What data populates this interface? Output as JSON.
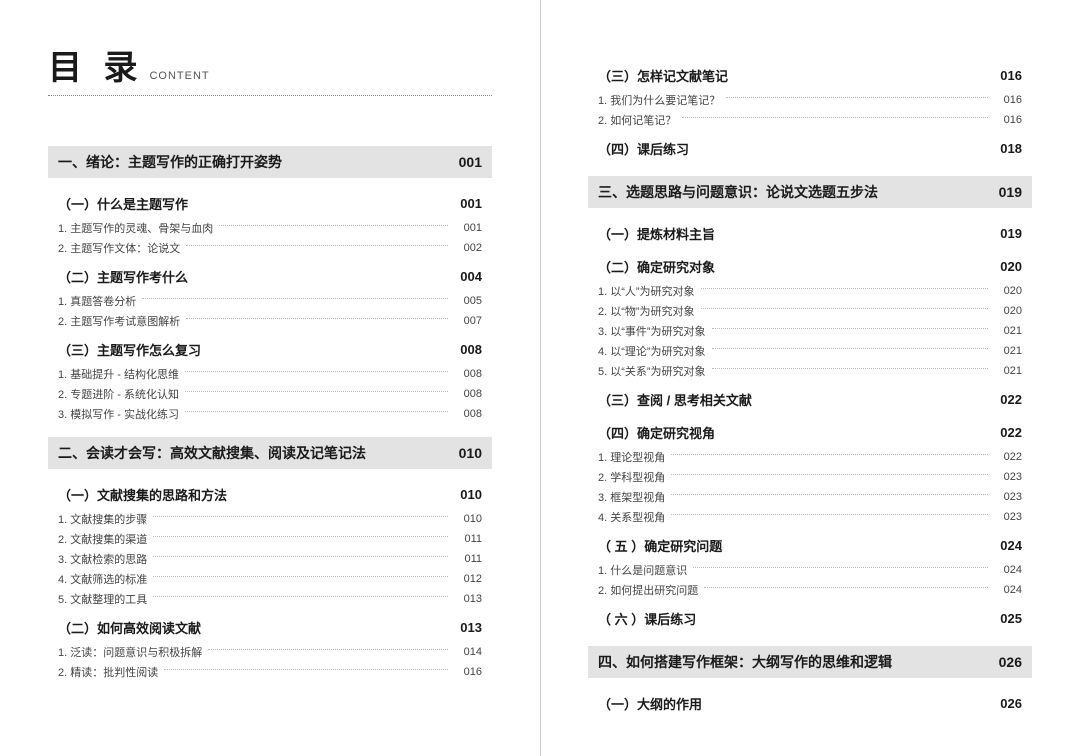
{
  "header": {
    "title_main": "目 录",
    "title_sub": "CONTENT"
  },
  "colors": {
    "page_bg": "#ffffff",
    "chapter_bg": "#e3e3e3",
    "text_primary": "#1a1a1a",
    "text_secondary": "#444",
    "dot_color": "#bbb",
    "divider_color": "#d0d0d0"
  },
  "left": {
    "ch1": {
      "title": "一、绪论：主题写作的正确打开姿势",
      "page": "001"
    },
    "ch1_s1": {
      "title": "（一）什么是主题写作",
      "page": "001"
    },
    "ch1_s1_i1": {
      "title": "1. 主题写作的灵魂、骨架与血肉",
      "page": "001"
    },
    "ch1_s1_i2": {
      "title": "2. 主题写作文体：论说文",
      "page": "002"
    },
    "ch1_s2": {
      "title": "（二）主题写作考什么",
      "page": "004"
    },
    "ch1_s2_i1": {
      "title": "1. 真题答卷分析",
      "page": "005"
    },
    "ch1_s2_i2": {
      "title": "2. 主题写作考试意图解析",
      "page": "007"
    },
    "ch1_s3": {
      "title": "（三）主题写作怎么复习",
      "page": "008"
    },
    "ch1_s3_i1": {
      "title": "1. 基础提升 - 结构化思维",
      "page": "008"
    },
    "ch1_s3_i2": {
      "title": "2. 专题进阶 - 系统化认知",
      "page": "008"
    },
    "ch1_s3_i3": {
      "title": "3. 模拟写作 - 实战化练习",
      "page": "008"
    },
    "ch2": {
      "title": "二、会读才会写：高效文献搜集、阅读及记笔记法",
      "page": "010"
    },
    "ch2_s1": {
      "title": "（一）文献搜集的思路和方法",
      "page": "010"
    },
    "ch2_s1_i1": {
      "title": "1. 文献搜集的步骤",
      "page": "010"
    },
    "ch2_s1_i2": {
      "title": "2. 文献搜集的渠道",
      "page": "011"
    },
    "ch2_s1_i3": {
      "title": "3. 文献检索的思路",
      "page": "011"
    },
    "ch2_s1_i4": {
      "title": "4. 文献筛选的标准",
      "page": "012"
    },
    "ch2_s1_i5": {
      "title": "5. 文献整理的工具",
      "page": "013"
    },
    "ch2_s2": {
      "title": "（二）如何高效阅读文献",
      "page": "013"
    },
    "ch2_s2_i1": {
      "title": "1. 泛读：问题意识与积极拆解",
      "page": "014"
    },
    "ch2_s2_i2": {
      "title": "2. 精读：批判性阅读",
      "page": "016"
    }
  },
  "right": {
    "ch2_s3": {
      "title": "（三）怎样记文献笔记",
      "page": "016"
    },
    "ch2_s3_i1": {
      "title": "1. 我们为什么要记笔记？",
      "page": "016"
    },
    "ch2_s3_i2": {
      "title": "2. 如何记笔记？",
      "page": "016"
    },
    "ch2_s4": {
      "title": "（四）课后练习",
      "page": "018"
    },
    "ch3": {
      "title": "三、选题思路与问题意识：论说文选题五步法",
      "page": "019"
    },
    "ch3_s1": {
      "title": "（一）提炼材料主旨",
      "page": "019"
    },
    "ch3_s2": {
      "title": "（二）确定研究对象",
      "page": "020"
    },
    "ch3_s2_i1": {
      "title": "1. 以“人”为研究对象",
      "page": "020"
    },
    "ch3_s2_i2": {
      "title": "2. 以“物”为研究对象",
      "page": "020"
    },
    "ch3_s2_i3": {
      "title": "3. 以“事件”为研究对象",
      "page": "021"
    },
    "ch3_s2_i4": {
      "title": "4. 以“理论”为研究对象",
      "page": "021"
    },
    "ch3_s2_i5": {
      "title": "5. 以“关系”为研究对象",
      "page": "021"
    },
    "ch3_s3": {
      "title": "（三）查阅 / 思考相关文献",
      "page": "022"
    },
    "ch3_s4": {
      "title": "（四）确定研究视角",
      "page": "022"
    },
    "ch3_s4_i1": {
      "title": "1. 理论型视角",
      "page": "022"
    },
    "ch3_s4_i2": {
      "title": "2. 学科型视角",
      "page": "023"
    },
    "ch3_s4_i3": {
      "title": "3. 框架型视角",
      "page": "023"
    },
    "ch3_s4_i4": {
      "title": "4. 关系型视角",
      "page": "023"
    },
    "ch3_s5": {
      "title": "（ 五 ）确定研究问题",
      "page": "024"
    },
    "ch3_s5_i1": {
      "title": "1. 什么是问题意识",
      "page": "024"
    },
    "ch3_s5_i2": {
      "title": "2. 如何提出研究问题",
      "page": "024"
    },
    "ch3_s6": {
      "title": "（ 六 ）课后练习",
      "page": "025"
    },
    "ch4": {
      "title": "四、如何搭建写作框架：大纲写作的思维和逻辑",
      "page": "026"
    },
    "ch4_s1": {
      "title": "（一）大纲的作用",
      "page": "026"
    }
  }
}
